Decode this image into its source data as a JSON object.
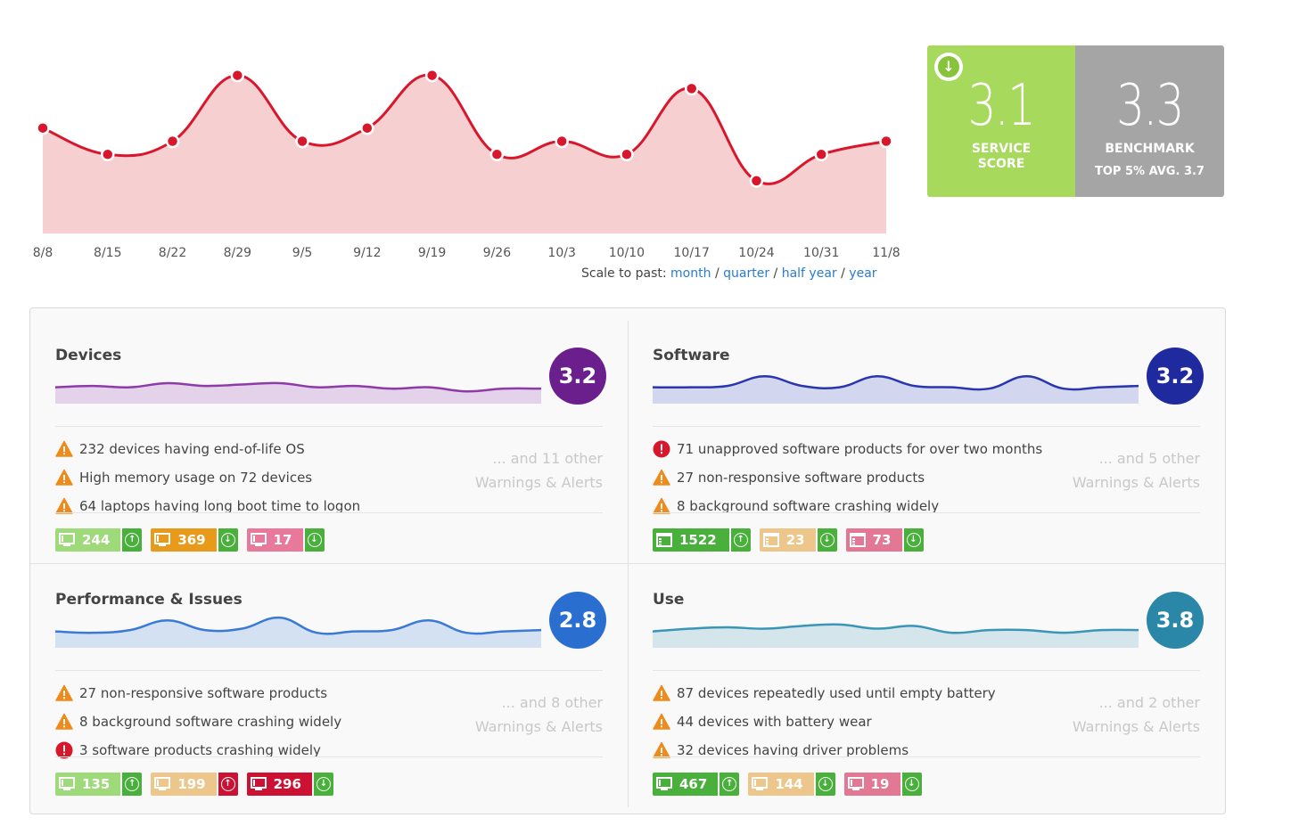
{
  "chart_data": {
    "type": "area",
    "categories": [
      "8/8",
      "8/15",
      "8/22",
      "8/29",
      "9/5",
      "9/12",
      "9/19",
      "9/26",
      "10/3",
      "10/10",
      "10/17",
      "10/24",
      "10/31",
      "11/8"
    ],
    "values": [
      3.3,
      3.1,
      3.2,
      3.7,
      3.2,
      3.3,
      3.7,
      3.1,
      3.2,
      3.1,
      3.6,
      2.9,
      3.1,
      3.2
    ],
    "ylim": [
      2.5,
      3.9
    ],
    "colors": {
      "line": "#d9172c",
      "fill": "#f6cfd1",
      "point": "#d9172c"
    }
  },
  "scale": {
    "prefix": "Scale to past:",
    "options": [
      "month",
      "quarter",
      "half year",
      "year"
    ]
  },
  "score": {
    "service_value": "3.1",
    "service_label_1": "SERVICE",
    "service_label_2": "SCORE",
    "service_icon": "down-arrow-icon",
    "benchmark_value": "3.3",
    "benchmark_label": "BENCHMARK",
    "benchmark_sub": "TOP 5% AVG. 3.7",
    "colors": {
      "service": "#a6d95c",
      "benchmark": "#a5a5a5"
    }
  },
  "cells": [
    {
      "title": "Devices",
      "score": "3.2",
      "score_color": "#6a1f8c",
      "spark_color": "#8e3aa8",
      "spark_fill": "#e3d2ea",
      "spark": [
        3.0,
        3.05,
        3.0,
        3.15,
        3.05,
        3.1,
        3.15,
        3.0,
        3.05,
        2.95,
        3.0,
        2.85,
        2.95,
        2.95
      ],
      "alerts": [
        {
          "type": "warning",
          "text": "232 devices having end-of-life OS"
        },
        {
          "type": "warning",
          "text": "High memory usage on 72 devices"
        },
        {
          "type": "warning",
          "text": "64 laptops having long boot time to logon"
        }
      ],
      "more_1": "... and 11 other",
      "more_2": "Warnings & Alerts",
      "badges": [
        {
          "value": "244",
          "icon": "monitor-icon",
          "color": "#9ed97a",
          "arrow_color": "#48b03b",
          "arrow": "up"
        },
        {
          "value": "369",
          "icon": "monitor-icon",
          "color": "#e89a1a",
          "arrow_color": "#48b03b",
          "arrow": "down"
        },
        {
          "value": "17",
          "icon": "monitor-icon",
          "color": "#e8799a",
          "arrow_color": "#48b03b",
          "arrow": "down"
        }
      ]
    },
    {
      "title": "Software",
      "score": "3.2",
      "score_color": "#1e2a9e",
      "spark_color": "#2a35b0",
      "spark_fill": "#d3d6ef",
      "spark": [
        3.0,
        3.0,
        3.05,
        3.4,
        3.05,
        3.0,
        3.4,
        3.05,
        3.0,
        2.95,
        3.4,
        2.95,
        3.0,
        3.05
      ],
      "alerts": [
        {
          "type": "error",
          "text": "71 unapproved software products for over two months"
        },
        {
          "type": "warning",
          "text": "27 non-responsive software products"
        },
        {
          "type": "warning",
          "text": "8 background software crashing widely"
        }
      ],
      "more_1": "... and 5 other",
      "more_2": "Warnings & Alerts",
      "badges": [
        {
          "value": "1522",
          "icon": "app-window-icon",
          "color": "#48b03b",
          "arrow_color": "#48b03b",
          "arrow": "up"
        },
        {
          "value": "23",
          "icon": "app-window-icon",
          "color": "#ecc68a",
          "arrow_color": "#48b03b",
          "arrow": "down"
        },
        {
          "value": "73",
          "icon": "app-window-icon",
          "color": "#e27893",
          "arrow_color": "#48b03b",
          "arrow": "down"
        }
      ]
    },
    {
      "title": "Performance & Issues",
      "score": "2.8",
      "score_color": "#2a6fd0",
      "spark_color": "#3a7ad6",
      "spark_fill": "#d3e1f3",
      "spark": [
        3.0,
        2.95,
        3.05,
        3.4,
        3.05,
        3.1,
        3.5,
        2.95,
        3.0,
        3.05,
        3.4,
        2.95,
        3.0,
        3.05
      ],
      "alerts": [
        {
          "type": "warning",
          "text": "27 non-responsive software products"
        },
        {
          "type": "warning",
          "text": "8 background software crashing widely"
        },
        {
          "type": "error",
          "text": "3 software products crashing widely"
        }
      ],
      "more_1": "... and 8 other",
      "more_2": "Warnings & Alerts",
      "badges": [
        {
          "value": "135",
          "icon": "monitor-icon",
          "color": "#9ed97a",
          "arrow_color": "#48b03b",
          "arrow": "up"
        },
        {
          "value": "199",
          "icon": "monitor-icon",
          "color": "#ecc68a",
          "arrow_color": "#cc1133",
          "arrow": "up"
        },
        {
          "value": "296",
          "icon": "monitor-icon",
          "color": "#cc1133",
          "arrow_color": "#48b03b",
          "arrow": "down"
        }
      ]
    },
    {
      "title": "Use",
      "score": "3.8",
      "score_color": "#2a87a8",
      "spark_color": "#3a95b6",
      "spark_fill": "#d4e6ec",
      "spark": [
        3.0,
        3.1,
        3.15,
        3.1,
        3.2,
        3.25,
        3.1,
        3.2,
        2.95,
        3.05,
        3.05,
        2.95,
        3.05,
        3.05
      ],
      "alerts": [
        {
          "type": "warning",
          "text": "87 devices repeatedly used until empty battery"
        },
        {
          "type": "warning",
          "text": "44 devices with battery wear"
        },
        {
          "type": "warning",
          "text": "32 devices having driver problems"
        }
      ],
      "more_1": "... and 2 other",
      "more_2": "Warnings & Alerts",
      "badges": [
        {
          "value": "467",
          "icon": "monitor-icon",
          "color": "#48b03b",
          "arrow_color": "#48b03b",
          "arrow": "up"
        },
        {
          "value": "144",
          "icon": "monitor-icon",
          "color": "#ecc68a",
          "arrow_color": "#48b03b",
          "arrow": "down"
        },
        {
          "value": "19",
          "icon": "monitor-icon",
          "color": "#e27893",
          "arrow_color": "#48b03b",
          "arrow": "down"
        }
      ]
    }
  ]
}
